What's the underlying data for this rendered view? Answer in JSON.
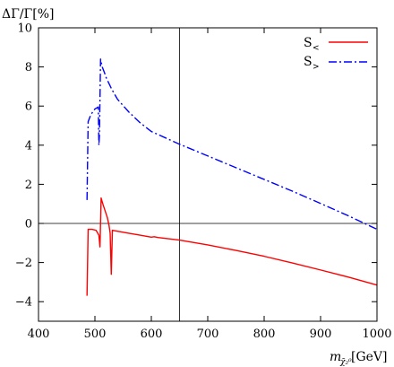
{
  "chart_data": {
    "type": "line",
    "ylabel": "ΔΓ/Γ[%]",
    "xlabel_main": "m",
    "xlabel_sub": "χ̃₂⁰",
    "xlabel_unit": "[GeV]",
    "xlim": [
      400,
      1000
    ],
    "ylim": [
      -5,
      10
    ],
    "xticks": [
      400,
      500,
      600,
      700,
      800,
      900,
      1000
    ],
    "yticks": [
      -4,
      -2,
      0,
      2,
      4,
      6,
      8,
      10
    ],
    "xtick_labels": [
      "400",
      "500",
      "600",
      "700",
      "800",
      "900",
      "1000"
    ],
    "ytick_labels": [
      "−4",
      "−2",
      "0",
      "2",
      "4",
      "6",
      "8",
      "10"
    ],
    "reference_lines": {
      "x": 650,
      "y": 0
    },
    "legend_position": "top-right",
    "series": [
      {
        "name": "S<",
        "name_main": "S",
        "name_sub": "<",
        "color": "#ff0000",
        "style": "solid",
        "points": [
          [
            486,
            -3.7
          ],
          [
            488,
            -0.3
          ],
          [
            495,
            -0.3
          ],
          [
            502,
            -0.35
          ],
          [
            507,
            -0.6
          ],
          [
            509,
            -1.2
          ],
          [
            511,
            1.3
          ],
          [
            514,
            1.0
          ],
          [
            518,
            0.65
          ],
          [
            522,
            0.3
          ],
          [
            525,
            -0.1
          ],
          [
            527,
            -0.5
          ],
          [
            529,
            -2.6
          ],
          [
            531,
            -0.35
          ],
          [
            540,
            -0.4
          ],
          [
            560,
            -0.5
          ],
          [
            580,
            -0.6
          ],
          [
            600,
            -0.7
          ],
          [
            605,
            -0.68
          ],
          [
            612,
            -0.72
          ],
          [
            650,
            -0.85
          ],
          [
            700,
            -1.1
          ],
          [
            750,
            -1.38
          ],
          [
            800,
            -1.68
          ],
          [
            850,
            -2.02
          ],
          [
            900,
            -2.38
          ],
          [
            950,
            -2.75
          ],
          [
            1000,
            -3.15
          ]
        ]
      },
      {
        "name": "S>",
        "name_main": "S",
        "name_sub": ">",
        "color": "#0000ff",
        "style": "dash-dot",
        "points": [
          [
            486,
            1.2
          ],
          [
            488,
            5.2
          ],
          [
            492,
            5.5
          ],
          [
            496,
            5.7
          ],
          [
            500,
            5.85
          ],
          [
            506,
            5.95
          ],
          [
            507,
            4.0
          ],
          [
            508,
            4.5
          ],
          [
            510,
            8.4
          ],
          [
            513,
            8.0
          ],
          [
            517,
            7.7
          ],
          [
            520,
            7.45
          ],
          [
            530,
            6.85
          ],
          [
            540,
            6.35
          ],
          [
            560,
            5.7
          ],
          [
            580,
            5.15
          ],
          [
            600,
            4.7
          ],
          [
            650,
            4.05
          ],
          [
            700,
            3.45
          ],
          [
            750,
            2.85
          ],
          [
            800,
            2.25
          ],
          [
            850,
            1.65
          ],
          [
            900,
            1.02
          ],
          [
            950,
            0.38
          ],
          [
            1000,
            -0.3
          ]
        ]
      }
    ]
  }
}
